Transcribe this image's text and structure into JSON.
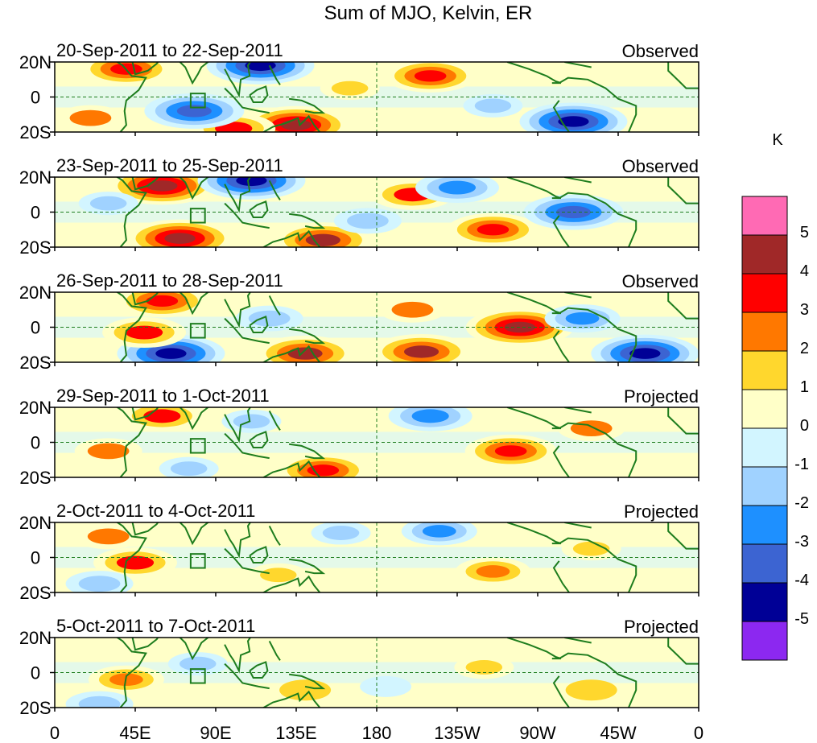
{
  "title": "Sum of MJO, Kelvin, ER",
  "panels": [
    {
      "date_range": "20-Sep-2011 to 22-Sep-2011",
      "status": "Observed"
    },
    {
      "date_range": "23-Sep-2011 to 25-Sep-2011",
      "status": "Observed"
    },
    {
      "date_range": "26-Sep-2011 to 28-Sep-2011",
      "status": "Observed"
    },
    {
      "date_range": "29-Sep-2011 to 1-Oct-2011",
      "status": "Projected"
    },
    {
      "date_range": "2-Oct-2011 to 4-Oct-2011",
      "status": "Projected"
    },
    {
      "date_range": "5-Oct-2011 to 7-Oct-2011",
      "status": "Projected"
    }
  ],
  "lat_labels": [
    "20N",
    "0",
    "20S"
  ],
  "lon_labels": [
    "0",
    "45E",
    "90E",
    "135E",
    "180",
    "135W",
    "90W",
    "45W",
    "0"
  ],
  "colorbar": {
    "unit": "K",
    "labels": [
      "5",
      "4",
      "3",
      "2",
      "1",
      "0",
      "-1",
      "-2",
      "-3",
      "-4",
      "-5"
    ],
    "colors": [
      "#ff6ab4",
      "#a02828",
      "#ff0000",
      "#ff7800",
      "#ffd72d",
      "#ffffc8",
      "#d2f5ff",
      "#a0d2ff",
      "#1e90ff",
      "#3c64d2",
      "#000096",
      "#8c28f0"
    ]
  },
  "style": {
    "coast": "#1e7d1e",
    "grid": "#1e7d1e"
  },
  "anomaly_blobs": [
    [
      {
        "lon": 40,
        "lat": 16,
        "v": 3.5
      },
      {
        "lon": 115,
        "lat": 18,
        "v": -4.5
      },
      {
        "lon": 135,
        "lat": -16,
        "v": 4.5
      },
      {
        "lon": 100,
        "lat": -18,
        "v": 3
      },
      {
        "lon": 78,
        "lat": -8,
        "v": -4
      },
      {
        "lon": 210,
        "lat": 12,
        "v": 3.5
      },
      {
        "lon": 290,
        "lat": -14,
        "v": -4.5
      },
      {
        "lon": 245,
        "lat": -5,
        "v": -1.5
      },
      {
        "lon": 20,
        "lat": -12,
        "v": 2
      },
      {
        "lon": 165,
        "lat": 5,
        "v": 1.5
      }
    ],
    [
      {
        "lon": 60,
        "lat": 15,
        "v": 4.5
      },
      {
        "lon": 110,
        "lat": 18,
        "v": -4.5
      },
      {
        "lon": 70,
        "lat": -15,
        "v": 4.5
      },
      {
        "lon": 150,
        "lat": -16,
        "v": 4
      },
      {
        "lon": 200,
        "lat": 10,
        "v": 3
      },
      {
        "lon": 245,
        "lat": -10,
        "v": 3.5
      },
      {
        "lon": 290,
        "lat": 0,
        "v": -4
      },
      {
        "lon": 225,
        "lat": 14,
        "v": -3
      },
      {
        "lon": 175,
        "lat": -5,
        "v": -2
      },
      {
        "lon": 30,
        "lat": 5,
        "v": -1.5
      }
    ],
    [
      {
        "lon": 60,
        "lat": 15,
        "v": 3.5
      },
      {
        "lon": 65,
        "lat": -15,
        "v": -4.5
      },
      {
        "lon": 50,
        "lat": -3,
        "v": 3
      },
      {
        "lon": 140,
        "lat": -15,
        "v": 4
      },
      {
        "lon": 205,
        "lat": -14,
        "v": 4
      },
      {
        "lon": 260,
        "lat": 0,
        "v": 4.5
      },
      {
        "lon": 330,
        "lat": -15,
        "v": -4.5
      },
      {
        "lon": 295,
        "lat": 5,
        "v": -2.5
      },
      {
        "lon": 200,
        "lat": 10,
        "v": 2
      },
      {
        "lon": 120,
        "lat": 5,
        "v": -2
      }
    ],
    [
      {
        "lon": 60,
        "lat": 15,
        "v": 3
      },
      {
        "lon": 150,
        "lat": -16,
        "v": 3.5
      },
      {
        "lon": 255,
        "lat": -5,
        "v": 3.5
      },
      {
        "lon": 210,
        "lat": 15,
        "v": -3
      },
      {
        "lon": 300,
        "lat": 8,
        "v": 2
      },
      {
        "lon": 30,
        "lat": -5,
        "v": 2
      },
      {
        "lon": 110,
        "lat": 12,
        "v": -1.5
      },
      {
        "lon": 75,
        "lat": -15,
        "v": -1.5
      }
    ],
    [
      {
        "lon": 45,
        "lat": -3,
        "v": 3
      },
      {
        "lon": 245,
        "lat": -8,
        "v": 2.5
      },
      {
        "lon": 30,
        "lat": 12,
        "v": 2
      },
      {
        "lon": 215,
        "lat": 15,
        "v": -2.5
      },
      {
        "lon": 125,
        "lat": -10,
        "v": 1.5
      },
      {
        "lon": 300,
        "lat": 5,
        "v": 1.5
      },
      {
        "lon": 160,
        "lat": 14,
        "v": -1.5
      },
      {
        "lon": 25,
        "lat": -15,
        "v": -2
      }
    ],
    [
      {
        "lon": 40,
        "lat": -4,
        "v": 2.5
      },
      {
        "lon": 240,
        "lat": 3,
        "v": 1.5
      },
      {
        "lon": 80,
        "lat": 5,
        "v": -1.5
      },
      {
        "lon": 25,
        "lat": -18,
        "v": -2
      },
      {
        "lon": 140,
        "lat": -10,
        "v": 1
      },
      {
        "lon": 300,
        "lat": -10,
        "v": 1
      },
      {
        "lon": 185,
        "lat": -8,
        "v": -1
      }
    ]
  ]
}
